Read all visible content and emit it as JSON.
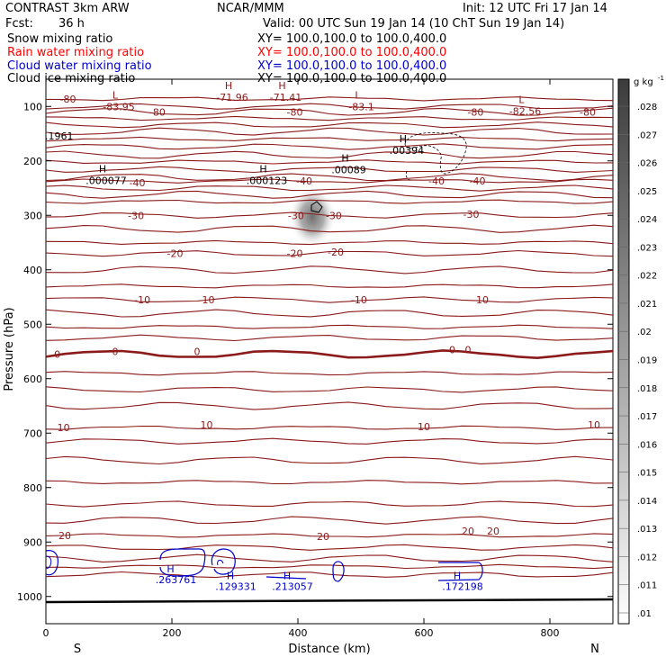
{
  "header": {
    "model": "CONTRAST  3km ARW",
    "org": "NCAR/MMM",
    "init": "Init: 12 UTC Fri 17 Jan 14",
    "fcst_label": "Fcst:",
    "fcst_value": "36 h",
    "valid": "Valid: 00 UTC Sun 19 Jan 14 (10 ChT Sun 19 Jan 14)"
  },
  "fields": [
    {
      "name": "Snow mixing ratio",
      "xy": "XY= 100.0,100.0 to 100.0,400.0",
      "color": "#000000"
    },
    {
      "name": "Rain water mixing ratio",
      "xy": "XY= 100.0,100.0 to 100.0,400.0",
      "color": "#ff0000"
    },
    {
      "name": "Cloud water mixing ratio",
      "xy": "XY= 100.0,100.0 to 100.0,400.0",
      "color": "#0000cc"
    },
    {
      "name": "Cloud ice mixing ratio",
      "xy": "XY= 100.0,100.0 to 100.0,400.0",
      "color": "#000000"
    }
  ],
  "chart_data": {
    "type": "cross-section contour",
    "xlabel": "Distance (km)",
    "ylabel": "Pressure (hPa)",
    "x_ticks": [
      "0",
      "200",
      "400",
      "600",
      "800"
    ],
    "x_end_labels": {
      "left": "S",
      "right": "N"
    },
    "y_ticks": [
      "100",
      "200",
      "300",
      "400",
      "500",
      "600",
      "700",
      "800",
      "900",
      "1000"
    ],
    "xlim": [
      0,
      900
    ],
    "ylim": [
      1050,
      50
    ],
    "temperature_contour_labels": [
      {
        "text": "-80",
        "x": 35,
        "p": 86
      },
      {
        "text": "-80",
        "x": 177,
        "p": 110
      },
      {
        "text": "-80",
        "x": 395,
        "p": 110
      },
      {
        "text": "-80",
        "x": 682,
        "p": 110
      },
      {
        "text": "-80",
        "x": 860,
        "p": 110
      },
      {
        "text": "-40",
        "x": 145,
        "p": 240
      },
      {
        "text": "-40",
        "x": 410,
        "p": 237
      },
      {
        "text": "-40",
        "x": 620,
        "p": 237
      },
      {
        "text": "-40",
        "x": 685,
        "p": 237
      },
      {
        "text": "-30",
        "x": 143,
        "p": 300
      },
      {
        "text": "-30",
        "x": 397,
        "p": 300
      },
      {
        "text": "-30",
        "x": 457,
        "p": 300
      },
      {
        "text": "-30",
        "x": 675,
        "p": 298
      },
      {
        "text": "-20",
        "x": 205,
        "p": 370
      },
      {
        "text": "-20",
        "x": 395,
        "p": 370
      },
      {
        "text": "-20",
        "x": 460,
        "p": 367
      },
      {
        "text": "-10",
        "x": 153,
        "p": 455
      },
      {
        "text": "-10",
        "x": 255,
        "p": 455
      },
      {
        "text": "-10",
        "x": 497,
        "p": 455
      },
      {
        "text": "-10",
        "x": 690,
        "p": 455
      },
      {
        "text": "0",
        "x": 18,
        "p": 555
      },
      {
        "text": "0",
        "x": 110,
        "p": 550
      },
      {
        "text": "0",
        "x": 240,
        "p": 550
      },
      {
        "text": "0",
        "x": 645,
        "p": 547
      },
      {
        "text": "0",
        "x": 670,
        "p": 547
      },
      {
        "text": "10",
        "x": 28,
        "p": 690
      },
      {
        "text": "10",
        "x": 255,
        "p": 685
      },
      {
        "text": "10",
        "x": 600,
        "p": 688
      },
      {
        "text": "10",
        "x": 870,
        "p": 685
      },
      {
        "text": "20",
        "x": 30,
        "p": 888
      },
      {
        "text": "20",
        "x": 440,
        "p": 890
      },
      {
        "text": "20",
        "x": 670,
        "p": 880
      },
      {
        "text": "20",
        "x": 710,
        "p": 880
      }
    ],
    "extrema_labels": [
      {
        "kind": "H",
        "value": "-71.96",
        "x": 290,
        "p": 85
      },
      {
        "kind": "H",
        "value": "-71.41",
        "x": 375,
        "p": 85
      },
      {
        "kind": "L",
        "value": "-83.95",
        "x": 110,
        "p": 102
      },
      {
        "kind": "L",
        "value": "-83.1",
        "x": 495,
        "p": 102
      },
      {
        "kind": "L",
        "value": "-82.56",
        "x": 755,
        "p": 110
      },
      {
        "kind": "H",
        "value": ".000077",
        "x": 90,
        "p": 238
      },
      {
        "kind": "H",
        "value": ".000123",
        "x": 345,
        "p": 238
      },
      {
        "kind": "H",
        "value": ".00089",
        "x": 475,
        "p": 218
      },
      {
        "kind": "H",
        "value": ".00394",
        "x": 567,
        "p": 182
      }
    ],
    "side_label": ".1961",
    "cloud_water_labels": [
      {
        "kind": "H",
        "value": ".263761",
        "x": 195,
        "p": 967
      },
      {
        "kind": "H",
        "value": ".129331",
        "x": 290,
        "p": 980
      },
      {
        "kind": "H",
        "value": ".213057",
        "x": 380,
        "p": 980
      },
      {
        "kind": "H",
        "value": ".172198",
        "x": 650,
        "p": 980
      }
    ],
    "colorbar": {
      "unit": "g kg",
      "unit_sup": "-1",
      "ticks": [
        ".028",
        ".027",
        ".026",
        ".025",
        ".024",
        ".023",
        ".022",
        ".021",
        ".02",
        ".019",
        ".018",
        ".017",
        ".016",
        ".015",
        ".014",
        ".013",
        ".012",
        ".011",
        ".01"
      ]
    },
    "colors": {
      "temperature": "#8b1a1a",
      "cloud_water": "#0000cc",
      "snow": "#000000"
    }
  }
}
